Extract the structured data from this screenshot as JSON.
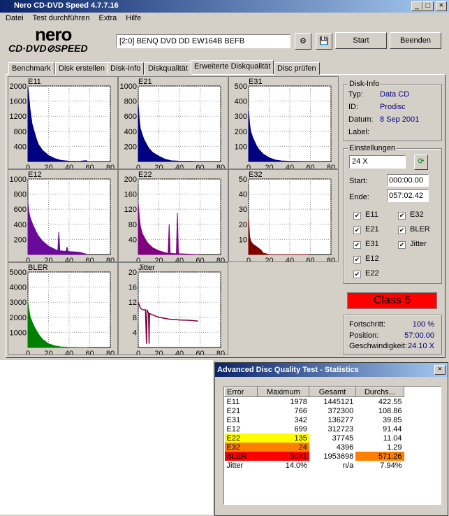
{
  "window": {
    "title": "Nero CD-DVD Speed 4.7.7.16"
  },
  "menu": [
    "Datei",
    "Test durchführen",
    "Extra",
    "Hilfe"
  ],
  "logo": {
    "top": "nero",
    "bottom": "CD·DVD⊘SPEED"
  },
  "device": "[2:0]  BENQ DVD DD EW164B BEFB",
  "buttons": {
    "start": "Start",
    "stop": "Beenden"
  },
  "tabs": [
    "Benchmark",
    "Disk erstellen",
    "Disk-Info",
    "Diskqualität",
    "Erweiterte Diskqualität",
    "Disc prüfen"
  ],
  "charts": [
    {
      "type": "area",
      "label": "E11",
      "color": "#000080",
      "xlim": [
        0,
        80
      ],
      "xticks": [
        0,
        20,
        40,
        60,
        80
      ],
      "ylim": [
        0,
        2000
      ],
      "yticks": [
        400,
        800,
        1200,
        1600,
        2000
      ],
      "x": [
        0,
        1,
        2,
        4,
        6,
        8,
        10,
        14,
        20,
        26,
        32,
        40,
        50,
        55,
        57,
        58
      ],
      "values": [
        1950,
        1700,
        1400,
        1000,
        800,
        620,
        460,
        300,
        160,
        80,
        30,
        10,
        5,
        20,
        20,
        0
      ]
    },
    {
      "type": "area",
      "label": "E21",
      "color": "#000080",
      "xlim": [
        0,
        80
      ],
      "xticks": [
        0,
        20,
        40,
        60,
        80
      ],
      "ylim": [
        0,
        1000
      ],
      "yticks": [
        200,
        400,
        600,
        800,
        1000
      ],
      "x": [
        0,
        1,
        2,
        4,
        6,
        8,
        10,
        14,
        20,
        26,
        32,
        40,
        50,
        58
      ],
      "values": [
        760,
        560,
        440,
        350,
        280,
        230,
        180,
        120,
        70,
        30,
        10,
        5,
        3,
        0
      ]
    },
    {
      "type": "area",
      "label": "E31",
      "color": "#000080",
      "xlim": [
        0,
        80
      ],
      "xticks": [
        0,
        20,
        40,
        60,
        80
      ],
      "ylim": [
        0,
        500
      ],
      "yticks": [
        100,
        200,
        300,
        400,
        500
      ],
      "x": [
        0,
        1,
        2,
        4,
        6,
        8,
        10,
        14,
        20,
        26,
        32,
        40,
        58
      ],
      "values": [
        340,
        250,
        200,
        160,
        130,
        100,
        80,
        50,
        25,
        10,
        4,
        2,
        0
      ]
    },
    {
      "type": "area",
      "label": "E12",
      "color": "#6a0a9a",
      "xlim": [
        0,
        80
      ],
      "xticks": [
        0,
        20,
        40,
        60,
        80
      ],
      "ylim": [
        0,
        1000
      ],
      "yticks": [
        200,
        400,
        600,
        800,
        1000
      ],
      "x": [
        0,
        1,
        2,
        4,
        6,
        8,
        10,
        14,
        20,
        26,
        29,
        30,
        31,
        37,
        38,
        39,
        50,
        58
      ],
      "values": [
        690,
        560,
        500,
        420,
        360,
        300,
        250,
        180,
        110,
        70,
        50,
        300,
        50,
        40,
        100,
        40,
        30,
        0
      ]
    },
    {
      "type": "area",
      "label": "E22",
      "color": "#800080",
      "xlim": [
        0,
        80
      ],
      "xticks": [
        0,
        20,
        40,
        60,
        80
      ],
      "ylim": [
        0,
        200
      ],
      "yticks": [
        40,
        80,
        120,
        160,
        200
      ],
      "x": [
        0,
        1,
        2,
        4,
        6,
        8,
        10,
        14,
        20,
        26,
        29,
        30,
        31,
        37,
        38,
        39,
        50,
        58
      ],
      "values": [
        135,
        100,
        75,
        55,
        45,
        35,
        28,
        18,
        10,
        5,
        3,
        80,
        3,
        2,
        110,
        2,
        1,
        0
      ]
    },
    {
      "type": "area",
      "label": "E32",
      "color": "#800000",
      "xlim": [
        0,
        80
      ],
      "xticks": [
        0,
        20,
        40,
        60,
        80
      ],
      "ylim": [
        0,
        50
      ],
      "yticks": [
        10,
        20,
        30,
        40,
        50
      ],
      "x": [
        0,
        1,
        2,
        4,
        6,
        8,
        10,
        12,
        14,
        20,
        58
      ],
      "values": [
        24,
        12,
        9,
        7,
        6,
        5,
        4,
        3,
        1,
        0,
        0
      ]
    },
    {
      "type": "area",
      "label": "BLER",
      "color": "#008000",
      "xlim": [
        0,
        80
      ],
      "xticks": [
        0,
        20,
        40,
        60,
        80
      ],
      "ylim": [
        0,
        5000
      ],
      "yticks": [
        1000,
        2000,
        3000,
        4000,
        5000
      ],
      "x": [
        0,
        1,
        2,
        4,
        6,
        8,
        10,
        14,
        20,
        26,
        32,
        40,
        50,
        58
      ],
      "values": [
        3000,
        2500,
        2100,
        1700,
        1400,
        1150,
        900,
        550,
        250,
        110,
        40,
        15,
        5,
        0
      ]
    },
    {
      "type": "line",
      "label": "Jitter",
      "color": "#800040",
      "xlim": [
        0,
        80
      ],
      "xticks": [
        0,
        20,
        40,
        60,
        80
      ],
      "ylim": [
        0,
        20
      ],
      "yticks": [
        4,
        8,
        12,
        16,
        20
      ],
      "x": [
        0,
        2,
        4,
        7,
        8,
        8.5,
        10,
        10.5,
        11,
        15,
        20,
        30,
        40,
        50,
        58
      ],
      "values": [
        12,
        10.5,
        10,
        10,
        1,
        10,
        9,
        1,
        9,
        8.5,
        8,
        7.5,
        7.3,
        7.2,
        7
      ]
    }
  ],
  "disk_info": {
    "title": "Disk-Info",
    "rows": [
      [
        "Typ:",
        "Data CD"
      ],
      [
        "ID:",
        "Prodisc"
      ],
      [
        "Datum:",
        "8 Sep 2001"
      ],
      [
        "Label:",
        ""
      ]
    ]
  },
  "settings": {
    "title": "Einstellungen",
    "speed": "24 X",
    "start_label": "Start:",
    "start": "000:00.00",
    "end_label": "Ende:",
    "end": "057:02.42",
    "checks": [
      "E11",
      "E32",
      "E21",
      "BLER",
      "E31",
      "Jitter",
      "E12",
      "E22"
    ]
  },
  "class": "Class 5",
  "progress": [
    [
      "Fortschritt:",
      "100 %"
    ],
    [
      "Position:",
      "57:00.00"
    ],
    [
      "Geschwindigkeit:",
      "24.10 X"
    ]
  ],
  "stats": {
    "title": "Advanced Disc Quality Test - Statistics",
    "header": [
      "Error",
      "Maximum",
      "Gesamt",
      "Durchs..."
    ],
    "rows": [
      {
        "cells": [
          "E11",
          "1978",
          "1445121",
          "422.55"
        ],
        "colors": [
          null,
          null,
          null,
          null
        ]
      },
      {
        "cells": [
          "E21",
          "766",
          "372300",
          "108.86"
        ],
        "colors": [
          null,
          null,
          null,
          null
        ]
      },
      {
        "cells": [
          "E31",
          "342",
          "136277",
          "39.85"
        ],
        "colors": [
          null,
          null,
          null,
          null
        ]
      },
      {
        "cells": [
          "E12",
          "699",
          "312723",
          "91.44"
        ],
        "colors": [
          null,
          null,
          null,
          null
        ]
      },
      {
        "cells": [
          "E22",
          "135",
          "37745",
          "11.04"
        ],
        "colors": [
          "#ffff00",
          "#ffff00",
          null,
          null
        ]
      },
      {
        "cells": [
          "E32",
          "24",
          "4396",
          "1.29"
        ],
        "colors": [
          "#ff8000",
          "#ff8000",
          null,
          null
        ]
      },
      {
        "cells": [
          "BLER",
          "3041",
          "1953698",
          "571.26"
        ],
        "colors": [
          "#ff0000",
          "#ff0000",
          null,
          "#ff8000"
        ]
      },
      {
        "cells": [
          "Jitter",
          "14.0%",
          "n/a",
          "7.94%"
        ],
        "colors": [
          null,
          null,
          null,
          null
        ]
      }
    ]
  }
}
